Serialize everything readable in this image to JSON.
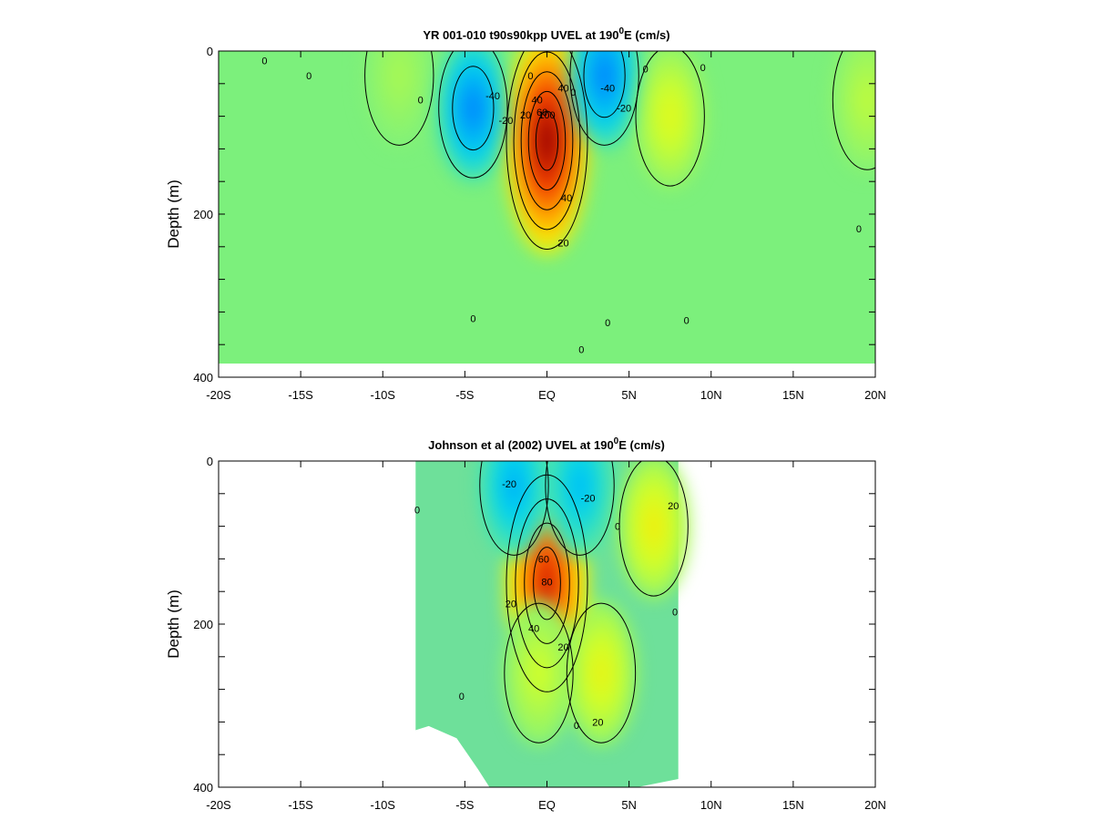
{
  "chart_data": [
    {
      "type": "heatmap",
      "title_main": "YR 001-010 t90s90kpp UVEL at 190",
      "title_sup": "0",
      "title_end": "E (cm/s)",
      "ylabel": "Depth (m)",
      "xlim": [
        -20,
        20
      ],
      "ylim": [
        0,
        400
      ],
      "y_inverted": true,
      "x_ticks": [
        -20,
        -15,
        -10,
        -5,
        0,
        5,
        10,
        15,
        20
      ],
      "x_tick_labels": [
        "-20S",
        "-15S",
        "-10S",
        "-5S",
        "EQ",
        "5N",
        "10N",
        "15N",
        "20N"
      ],
      "y_ticks": [
        0,
        200,
        400
      ],
      "y_tick_labels": [
        "0",
        "200",
        "400"
      ],
      "data_xlim": [
        -20,
        20
      ],
      "data_max_depth": 380,
      "features": [
        {
          "lat": 0.0,
          "depth": 110,
          "value": 100
        },
        {
          "lat": -4.5,
          "depth": 70,
          "value": -40
        },
        {
          "lat": 3.5,
          "depth": 30,
          "value": -40
        },
        {
          "lat": 7.5,
          "depth": 80,
          "value": 20
        },
        {
          "lat": -9.0,
          "depth": 30,
          "value": 8
        },
        {
          "lat": 19.5,
          "depth": 60,
          "value": 12
        }
      ],
      "contour_labels": [
        {
          "lat": -17.2,
          "depth": 12,
          "text": "0"
        },
        {
          "lat": -14.5,
          "depth": 30,
          "text": "0"
        },
        {
          "lat": -7.7,
          "depth": 60,
          "text": "0"
        },
        {
          "lat": -3.3,
          "depth": 55,
          "text": "-40"
        },
        {
          "lat": -2.5,
          "depth": 85,
          "text": "-20"
        },
        {
          "lat": -1.3,
          "depth": 78,
          "text": "20"
        },
        {
          "lat": -1.0,
          "depth": 30,
          "text": "0"
        },
        {
          "lat": -0.6,
          "depth": 60,
          "text": "40"
        },
        {
          "lat": -0.3,
          "depth": 75,
          "text": "60"
        },
        {
          "lat": 0.0,
          "depth": 78,
          "text": "100"
        },
        {
          "lat": 1.0,
          "depth": 45,
          "text": "40"
        },
        {
          "lat": 1.6,
          "depth": 50,
          "text": "0"
        },
        {
          "lat": 1.2,
          "depth": 180,
          "text": "40"
        },
        {
          "lat": 1.0,
          "depth": 235,
          "text": "20"
        },
        {
          "lat": 3.7,
          "depth": 45,
          "text": "-40"
        },
        {
          "lat": 4.7,
          "depth": 70,
          "text": "-20"
        },
        {
          "lat": 6.0,
          "depth": 22,
          "text": "0"
        },
        {
          "lat": 9.5,
          "depth": 20,
          "text": "0"
        },
        {
          "lat": -4.5,
          "depth": 328,
          "text": "0"
        },
        {
          "lat": 3.7,
          "depth": 333,
          "text": "0"
        },
        {
          "lat": 8.5,
          "depth": 330,
          "text": "0"
        },
        {
          "lat": 2.1,
          "depth": 366,
          "text": "0"
        },
        {
          "lat": 19.0,
          "depth": 218,
          "text": "0"
        }
      ]
    },
    {
      "type": "heatmap",
      "title_main": "Johnson et al (2002) UVEL at 190",
      "title_sup": "0",
      "title_end": "E (cm/s)",
      "ylabel": "Depth (m)",
      "xlim": [
        -20,
        20
      ],
      "ylim": [
        0,
        400
      ],
      "y_inverted": true,
      "x_ticks": [
        -20,
        -15,
        -10,
        -5,
        0,
        5,
        10,
        15,
        20
      ],
      "x_tick_labels": [
        "-20S",
        "-15S",
        "-10S",
        "-5S",
        "EQ",
        "5N",
        "10N",
        "15N",
        "20N"
      ],
      "y_ticks": [
        0,
        200,
        400
      ],
      "y_tick_labels": [
        "0",
        "200",
        "400"
      ],
      "data_xlim": [
        -8,
        8
      ],
      "data_max_depth": 400,
      "features": [
        {
          "lat": 0.0,
          "depth": 150,
          "value": 80
        },
        {
          "lat": -2.0,
          "depth": 30,
          "value": -28
        },
        {
          "lat": 2.0,
          "depth": 30,
          "value": -25
        },
        {
          "lat": 6.5,
          "depth": 80,
          "value": 25
        },
        {
          "lat": 3.3,
          "depth": 260,
          "value": 22
        },
        {
          "lat": -0.5,
          "depth": 260,
          "value": 15
        }
      ],
      "contour_labels": [
        {
          "lat": -2.3,
          "depth": 28,
          "text": "-20"
        },
        {
          "lat": 2.5,
          "depth": 45,
          "text": "-20"
        },
        {
          "lat": 7.7,
          "depth": 55,
          "text": "20"
        },
        {
          "lat": -7.9,
          "depth": 60,
          "text": "0"
        },
        {
          "lat": 4.3,
          "depth": 80,
          "text": "0"
        },
        {
          "lat": -0.2,
          "depth": 120,
          "text": "60"
        },
        {
          "lat": 0.0,
          "depth": 148,
          "text": "80"
        },
        {
          "lat": -2.2,
          "depth": 175,
          "text": "20"
        },
        {
          "lat": -0.8,
          "depth": 205,
          "text": "40"
        },
        {
          "lat": 1.0,
          "depth": 228,
          "text": "20"
        },
        {
          "lat": -5.2,
          "depth": 288,
          "text": "0"
        },
        {
          "lat": 3.1,
          "depth": 320,
          "text": "20"
        },
        {
          "lat": 1.8,
          "depth": 324,
          "text": "0"
        },
        {
          "lat": 7.8,
          "depth": 185,
          "text": "0"
        }
      ]
    }
  ]
}
